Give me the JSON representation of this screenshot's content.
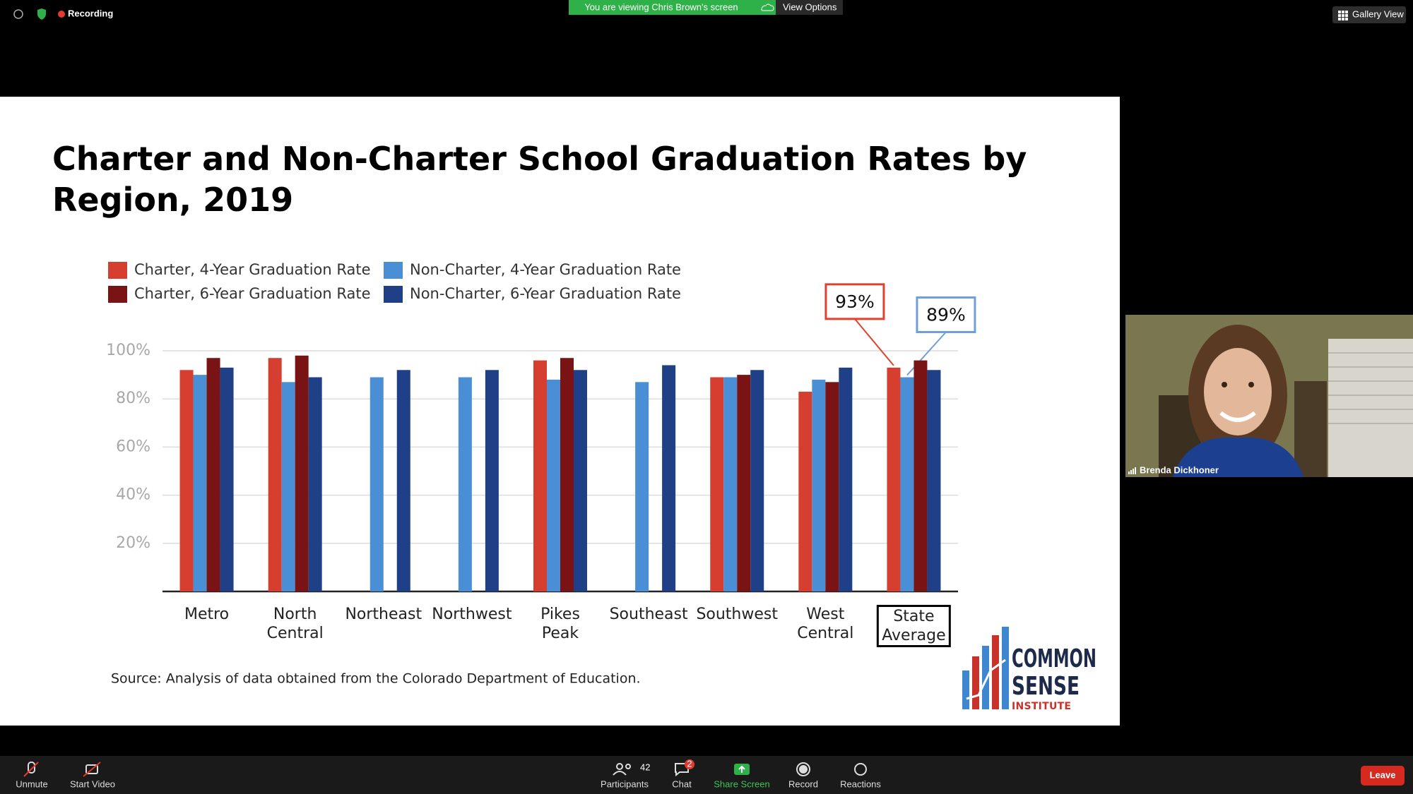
{
  "meeting": {
    "recording": "Recording",
    "banner": "You are viewing Chris Brown's screen",
    "view_options": "View Options",
    "gallery_view": "Gallery View",
    "participant_name": "Brenda Dickhoner",
    "participants_count": 42,
    "chat_badge": 2,
    "toolbar": [
      "Unmute",
      "Start Video",
      "Participants",
      "Chat",
      "Share Screen",
      "Record",
      "Reactions"
    ],
    "leave": "Leave"
  },
  "chart_data": {
    "type": "bar",
    "title": "Charter and Non-Charter School Graduation Rates by Region, 2019",
    "categories": [
      "Metro",
      "North Central",
      "Northeast",
      "Northwest",
      "Pikes Peak",
      "Southeast",
      "Southwest",
      "West Central",
      "State Average"
    ],
    "series": [
      {
        "name": "Charter, 4-Year Graduation Rate",
        "color": "#d63f2f",
        "values": [
          92,
          97,
          null,
          null,
          96,
          null,
          89,
          83,
          93
        ],
        "value_labels": [
          null,
          null,
          null,
          null,
          null,
          null,
          null,
          null,
          "93%"
        ]
      },
      {
        "name": "Non-Charter, 4-Year Graduation Rate",
        "color": "#4a8fd6",
        "values": [
          90,
          87,
          89,
          89,
          88,
          87,
          89,
          88,
          89
        ],
        "value_labels": [
          null,
          null,
          null,
          null,
          null,
          null,
          null,
          null,
          "89%"
        ]
      },
      {
        "name": "Charter, 6-Year Graduation Rate",
        "color": "#7a1414",
        "values": [
          97,
          98,
          null,
          null,
          97,
          null,
          90,
          87,
          96
        ]
      },
      {
        "name": "Non-Charter, 6-Year Graduation Rate",
        "color": "#1f3f86",
        "values": [
          93,
          89,
          92,
          92,
          92,
          94,
          92,
          93,
          92
        ]
      }
    ],
    "ylim": [
      0,
      100
    ],
    "yticks": [
      {
        "value": 20,
        "label": "20%"
      },
      {
        "value": 40,
        "label": "40%"
      },
      {
        "value": 60,
        "label": "60%"
      },
      {
        "value": 80,
        "label": "80%"
      },
      {
        "value": 100,
        "label": "100%"
      }
    ],
    "grid": true,
    "source": "Source: Analysis of data obtained from the Colorado Department of Education."
  },
  "logo": {
    "line1": "COMMON",
    "line2": "SENSE",
    "line3": "INSTITUTE"
  }
}
